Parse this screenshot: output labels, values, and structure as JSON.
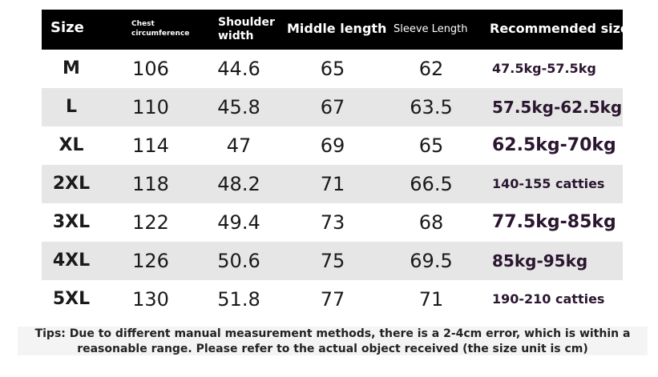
{
  "table": {
    "header": [
      "Size",
      "Chest circumference",
      "Shoulder width",
      "Middle length",
      "Sleeve Length",
      "Recommended size"
    ],
    "rows": [
      [
        "M",
        "106",
        "44.6",
        "65",
        "62",
        "47.5kg-57.5kg"
      ],
      [
        "L",
        "110",
        "45.8",
        "67",
        "63.5",
        "57.5kg-62.5kg"
      ],
      [
        "XL",
        "114",
        "47",
        "69",
        "65",
        "62.5kg-70kg"
      ],
      [
        "2XL",
        "118",
        "48.2",
        "71",
        "66.5",
        "140-155 catties"
      ],
      [
        "3XL",
        "122",
        "49.4",
        "73",
        "68",
        "77.5kg-85kg"
      ],
      [
        "4XL",
        "126",
        "50.6",
        "75",
        "69.5",
        "85kg-95kg"
      ],
      [
        "5XL",
        "130",
        "51.8",
        "77",
        "71",
        "190-210 catties"
      ]
    ]
  },
  "tips": "Tips: Due to different manual measurement methods, there is a 2-4cm error, which is within a reasonable range. Please refer to the actual object received (the size unit is cm)"
}
